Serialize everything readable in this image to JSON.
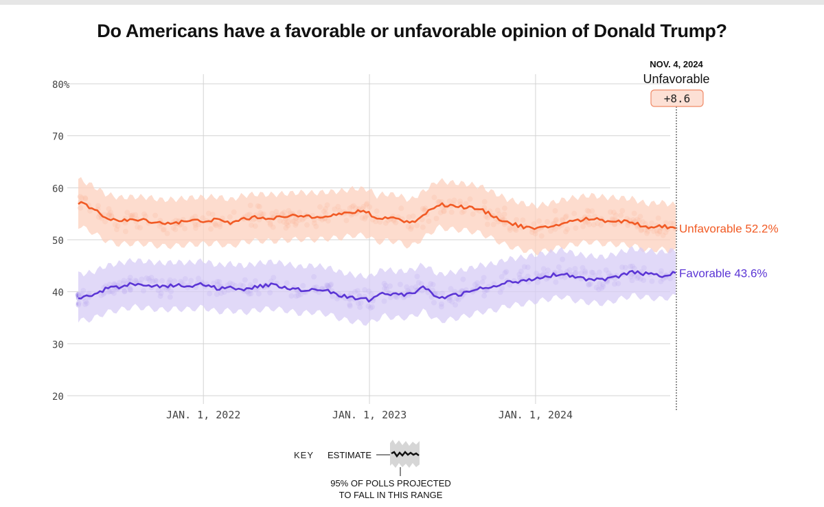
{
  "title": "Do Americans have a favorable or unfavorable opinion of Donald Trump?",
  "colors": {
    "unfavorable": "#f15a24",
    "favorable": "#5b35d5",
    "unfavorable_band": "#fcd0bd",
    "favorable_band": "#d7ccf6",
    "grid": "#d3d3d3",
    "callout_bg": "#fde0d5",
    "callout_border": "#f08a68"
  },
  "callout": {
    "date": "NOV. 4, 2024",
    "leader": "Unfavorable",
    "margin": "+8.6"
  },
  "key": {
    "label": "KEY",
    "estimate": "ESTIMATE",
    "range_line1": "95% OF POLLS PROJECTED",
    "range_line2": "TO FALL IN THIS RANGE"
  },
  "chart_data": {
    "type": "line",
    "title": "Do Americans have a favorable or unfavorable opinion of Donald Trump?",
    "x_domain": [
      "2021-04-01",
      "2024-11-04"
    ],
    "ylim": [
      20,
      80
    ],
    "y_ticks": [
      20,
      30,
      40,
      50,
      60,
      70,
      80
    ],
    "y_tick_labels": [
      "20",
      "30",
      "40",
      "50",
      "60",
      "70",
      "80%"
    ],
    "x_ticks": [
      {
        "date": "2022-01-01",
        "label": "JAN. 1, 2022"
      },
      {
        "date": "2023-01-01",
        "label": "JAN. 1, 2023"
      },
      {
        "date": "2024-01-01",
        "label": "JAN. 1, 2024"
      }
    ],
    "grid": true,
    "band_halfwidth": 4.5,
    "series": [
      {
        "name": "Unfavorable",
        "label": "Unfavorable 52.2%",
        "final_value": 52.2,
        "points": [
          [
            "2021-04-01",
            57.2
          ],
          [
            "2021-05-01",
            56.0
          ],
          [
            "2021-06-01",
            54.3
          ],
          [
            "2021-07-01",
            53.6
          ],
          [
            "2021-08-01",
            53.8
          ],
          [
            "2021-09-01",
            53.7
          ],
          [
            "2021-10-01",
            53.2
          ],
          [
            "2021-11-01",
            53.3
          ],
          [
            "2021-12-01",
            53.6
          ],
          [
            "2022-01-01",
            53.7
          ],
          [
            "2022-02-01",
            53.8
          ],
          [
            "2022-03-01",
            53.2
          ],
          [
            "2022-04-01",
            54.1
          ],
          [
            "2022-05-01",
            54.3
          ],
          [
            "2022-06-01",
            54.2
          ],
          [
            "2022-07-01",
            54.4
          ],
          [
            "2022-08-01",
            54.6
          ],
          [
            "2022-09-01",
            54.5
          ],
          [
            "2022-10-01",
            54.7
          ],
          [
            "2022-11-01",
            54.9
          ],
          [
            "2022-12-01",
            55.4
          ],
          [
            "2023-01-01",
            55.2
          ],
          [
            "2023-01-15",
            53.9
          ],
          [
            "2023-02-01",
            54.3
          ],
          [
            "2023-03-01",
            54.2
          ],
          [
            "2023-04-01",
            53.1
          ],
          [
            "2023-05-01",
            54.9
          ],
          [
            "2023-06-01",
            56.9
          ],
          [
            "2023-07-01",
            56.5
          ],
          [
            "2023-08-01",
            56.3
          ],
          [
            "2023-09-01",
            55.8
          ],
          [
            "2023-10-01",
            54.6
          ],
          [
            "2023-11-01",
            53.3
          ],
          [
            "2023-12-01",
            52.6
          ],
          [
            "2024-01-01",
            52.0
          ],
          [
            "2024-02-01",
            52.5
          ],
          [
            "2024-03-01",
            53.2
          ],
          [
            "2024-04-01",
            53.7
          ],
          [
            "2024-05-01",
            54.1
          ],
          [
            "2024-06-01",
            53.7
          ],
          [
            "2024-07-01",
            53.6
          ],
          [
            "2024-08-01",
            53.4
          ],
          [
            "2024-09-01",
            52.4
          ],
          [
            "2024-10-01",
            52.7
          ],
          [
            "2024-11-04",
            52.2
          ]
        ]
      },
      {
        "name": "Favorable",
        "label": "Favorable 43.6%",
        "final_value": 43.6,
        "points": [
          [
            "2021-04-01",
            38.9
          ],
          [
            "2021-05-01",
            39.2
          ],
          [
            "2021-06-01",
            40.5
          ],
          [
            "2021-07-01",
            41.0
          ],
          [
            "2021-08-01",
            41.6
          ],
          [
            "2021-09-01",
            41.3
          ],
          [
            "2021-10-01",
            41.0
          ],
          [
            "2021-11-01",
            41.2
          ],
          [
            "2021-12-01",
            41.1
          ],
          [
            "2022-01-01",
            41.5
          ],
          [
            "2022-02-01",
            40.6
          ],
          [
            "2022-03-01",
            40.9
          ],
          [
            "2022-04-01",
            40.5
          ],
          [
            "2022-05-01",
            41.0
          ],
          [
            "2022-06-01",
            41.3
          ],
          [
            "2022-07-01",
            40.9
          ],
          [
            "2022-08-01",
            40.3
          ],
          [
            "2022-09-01",
            40.6
          ],
          [
            "2022-10-01",
            40.2
          ],
          [
            "2022-11-01",
            39.2
          ],
          [
            "2022-12-01",
            38.7
          ],
          [
            "2023-01-01",
            38.4
          ],
          [
            "2023-02-01",
            39.9
          ],
          [
            "2023-03-01",
            39.4
          ],
          [
            "2023-04-01",
            39.6
          ],
          [
            "2023-05-01",
            40.8
          ],
          [
            "2023-06-01",
            38.8
          ],
          [
            "2023-07-01",
            39.2
          ],
          [
            "2023-08-01",
            39.8
          ],
          [
            "2023-09-01",
            40.6
          ],
          [
            "2023-10-01",
            40.9
          ],
          [
            "2023-11-01",
            41.8
          ],
          [
            "2023-12-01",
            42.1
          ],
          [
            "2024-01-01",
            42.6
          ],
          [
            "2024-02-01",
            43.1
          ],
          [
            "2024-03-01",
            43.6
          ],
          [
            "2024-04-01",
            42.7
          ],
          [
            "2024-05-01",
            42.4
          ],
          [
            "2024-06-01",
            42.2
          ],
          [
            "2024-07-01",
            43.0
          ],
          [
            "2024-08-01",
            43.8
          ],
          [
            "2024-09-01",
            43.4
          ],
          [
            "2024-10-01",
            43.1
          ],
          [
            "2024-11-04",
            43.6
          ]
        ]
      }
    ]
  }
}
